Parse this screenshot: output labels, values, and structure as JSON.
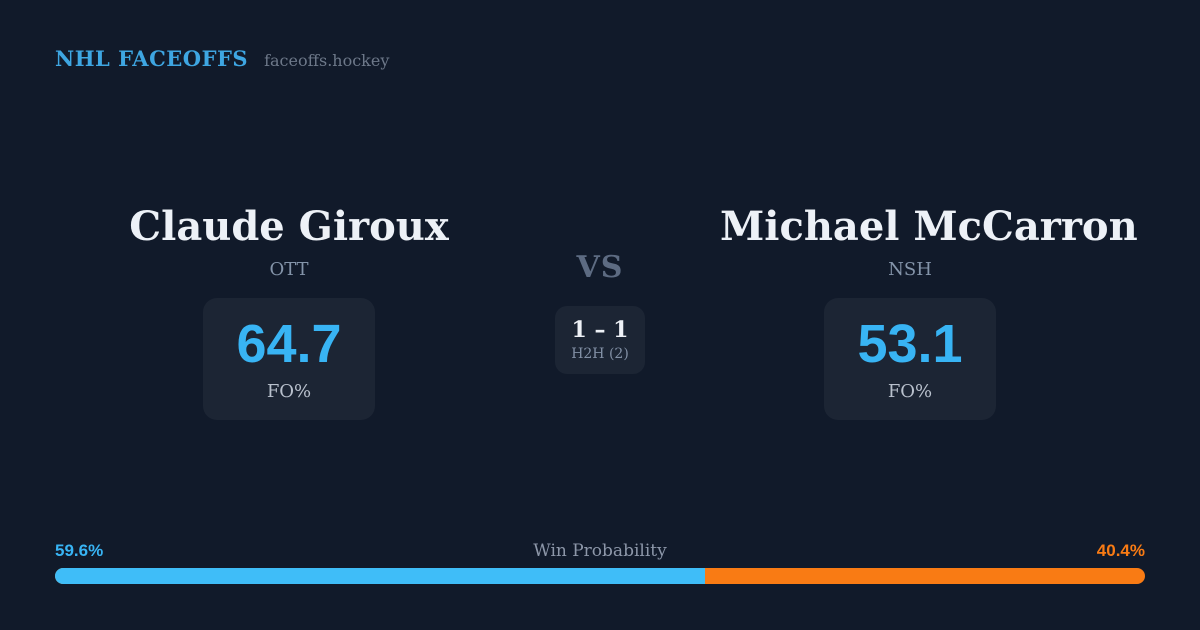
{
  "header": {
    "brand": "NHL FACEOFFS",
    "site": "faceoffs.hockey"
  },
  "matchup": {
    "player_left": {
      "name": "Claude Giroux",
      "team": "OTT",
      "fo_pct": "64.7",
      "fo_label": "FO%"
    },
    "vs_label": "VS",
    "h2h": {
      "score": "1 – 1",
      "label": "H2H (2)"
    },
    "player_right": {
      "name": "Michael McCarron",
      "team": "NSH",
      "fo_pct": "53.1",
      "fo_label": "FO%"
    }
  },
  "win_probability": {
    "label": "Win Probability",
    "left": {
      "text": "59.6%",
      "value": 59.6
    },
    "right": {
      "text": "40.4%",
      "value": 40.4
    }
  },
  "colors": {
    "background": "#111A2A",
    "card": "#1C2534",
    "accent_blue": "#38B4F4",
    "bar_blue": "#3FBDF8",
    "accent_orange": "#F97B14",
    "brand_blue": "#3EA6E2"
  }
}
